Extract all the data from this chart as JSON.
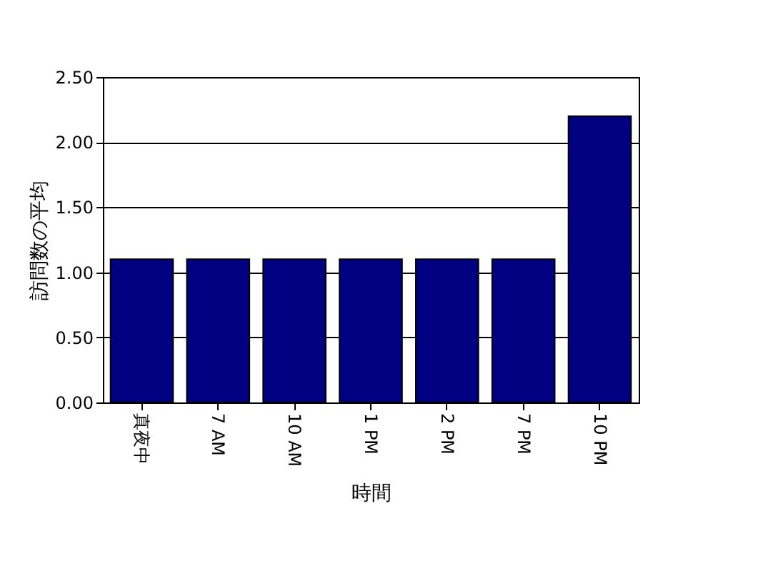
{
  "chart_data": {
    "type": "bar",
    "xlabel": "時間",
    "ylabel": "訪問数の平均",
    "categories": [
      "真夜中",
      "7 AM",
      "10 AM",
      "1 PM",
      "2 PM",
      "7 PM",
      "10 PM"
    ],
    "values": [
      1.1,
      1.1,
      1.1,
      1.1,
      1.1,
      1.1,
      2.2
    ],
    "color": "#000080",
    "ylim": [
      0,
      2.5
    ],
    "yticks": [
      {
        "value": 0,
        "label": "0.00"
      },
      {
        "value": 0.5,
        "label": "0.50"
      },
      {
        "value": 1,
        "label": "1.00"
      },
      {
        "value": 1.5,
        "label": "1.50"
      },
      {
        "value": 2,
        "label": "2.00"
      },
      {
        "value": 2.5,
        "label": "2.50"
      }
    ],
    "grid": "y"
  }
}
